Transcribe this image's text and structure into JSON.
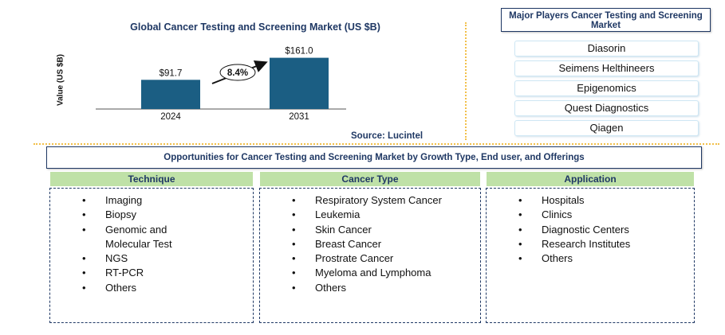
{
  "fragment": "[page capture fragment, text cut off]",
  "chart_data": {
    "type": "bar",
    "title": "Global Cancer Testing and Screening Market (US $B)",
    "ylabel": "Value (US $B)",
    "xlabel": "",
    "categories": [
      "2024",
      "2031"
    ],
    "values": [
      91.7,
      161.0
    ],
    "data_labels": [
      "$91.7",
      "$161.0"
    ],
    "ylim": [
      0,
      180
    ],
    "color": "#1b5e83",
    "annotation": "8.4%",
    "source": "Source: Lucintel"
  },
  "players": {
    "title": "Major Players Cancer Testing and Screening Market",
    "items": [
      "Diasorin",
      "Seimens Helthineers",
      "Epigenomics",
      "Quest Diagnostics",
      "Qiagen"
    ]
  },
  "opportunities": {
    "title": "Opportunities for Cancer Testing and Screening Market by Growth Type, End user, and Offerings",
    "columns": [
      {
        "heading": "Technique",
        "items": [
          "Imaging",
          "Biopsy",
          "Genomic and Molecular Test",
          "NGS",
          "RT-PCR",
          "Others"
        ]
      },
      {
        "heading": "Cancer Type",
        "items": [
          "Respiratory System Cancer",
          "Leukemia",
          "Skin Cancer",
          "Breast Cancer",
          "Prostrate Cancer",
          "Myeloma and Lymphoma",
          "Others"
        ]
      },
      {
        "heading": "Application",
        "items": [
          "Hospitals",
          "Clinics",
          "Diagnostic Centers",
          "Research Institutes",
          "Others"
        ]
      }
    ]
  },
  "colors": {
    "accent": "#1f3864",
    "bar": "#1b5e83",
    "header_green": "#bfe1a7",
    "divider": "#f2c04a"
  }
}
